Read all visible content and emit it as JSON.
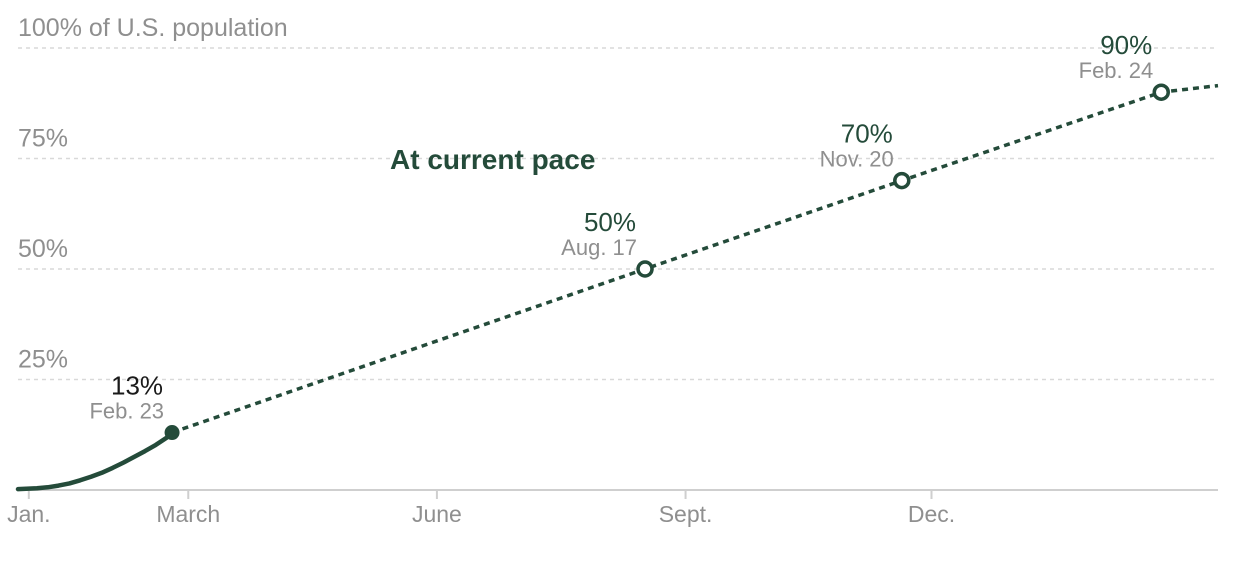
{
  "colors": {
    "series": "#244b3a",
    "muted_text": "#8f8f8f",
    "dark_text": "#1a1a1a",
    "grid": "#d9d9d9"
  },
  "chart_data": {
    "type": "line",
    "ylabel": "100% of U.S. population",
    "ylim": [
      0,
      100
    ],
    "y_ticks": [
      {
        "value": 25,
        "label": "25%"
      },
      {
        "value": 50,
        "label": "50%"
      },
      {
        "value": 75,
        "label": "75%"
      },
      {
        "value": 100,
        "label": "100% of U.S. population"
      }
    ],
    "x_ticks": [
      {
        "value": "2021-01-01",
        "label": "Jan."
      },
      {
        "value": "2021-03-01",
        "label": "March"
      },
      {
        "value": "2021-06-01",
        "label": "June"
      },
      {
        "value": "2021-09-01",
        "label": "Sept."
      },
      {
        "value": "2021-12-01",
        "label": "Dec."
      }
    ],
    "xlim": [
      "2020-12-28",
      "2022-03-17"
    ],
    "grid": true,
    "annotation": "At current pace",
    "series": [
      {
        "style": "solid",
        "x": [
          "2020-12-28",
          "2021-01-04",
          "2021-01-08",
          "2021-01-12",
          "2021-01-16",
          "2021-01-20",
          "2021-01-24",
          "2021-01-28",
          "2021-02-01",
          "2021-02-05",
          "2021-02-09",
          "2021-02-13",
          "2021-02-17",
          "2021-02-21",
          "2021-02-23"
        ],
        "y": [
          0.2,
          0.4,
          0.6,
          1.0,
          1.5,
          2.2,
          3.0,
          3.9,
          5.0,
          6.2,
          7.5,
          8.8,
          10.2,
          11.8,
          13
        ]
      },
      {
        "style": "dotted",
        "x": [
          "2021-02-23",
          "2021-08-17",
          "2021-11-20",
          "2022-02-24",
          "2022-03-17"
        ],
        "y": [
          13,
          50,
          70,
          90,
          91.5
        ]
      }
    ],
    "milestones": [
      {
        "date": "2021-02-23",
        "value": 13,
        "pct_label": "13%",
        "date_label": "Feb. 23",
        "marker": "filled"
      },
      {
        "date": "2021-08-17",
        "value": 50,
        "pct_label": "50%",
        "date_label": "Aug. 17",
        "marker": "open"
      },
      {
        "date": "2021-11-20",
        "value": 70,
        "pct_label": "70%",
        "date_label": "Nov. 20",
        "marker": "open"
      },
      {
        "date": "2022-02-24",
        "value": 90,
        "pct_label": "90%",
        "date_label": "Feb. 24",
        "marker": "open"
      }
    ]
  }
}
